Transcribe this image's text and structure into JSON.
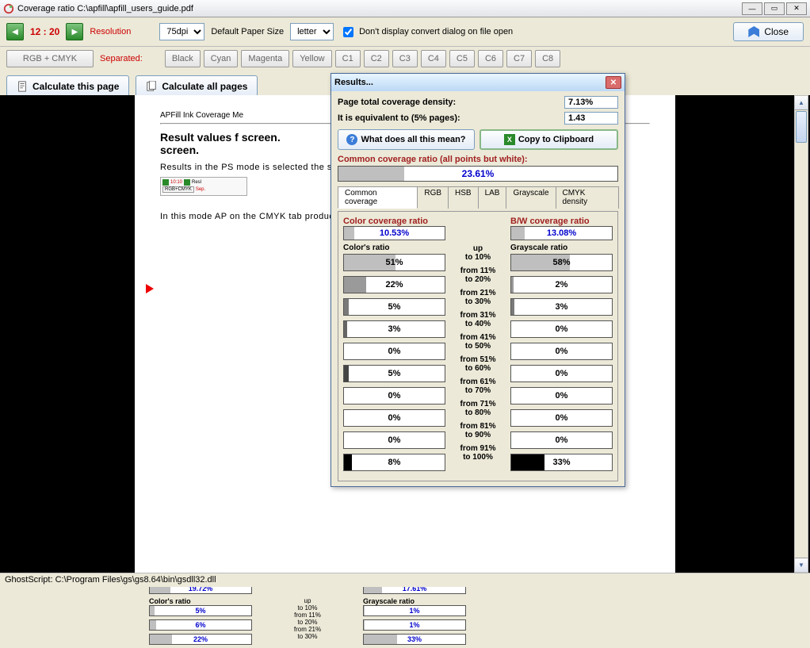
{
  "window": {
    "title": "Coverage ratio C:\\apfill\\apfill_users_guide.pdf",
    "min": "—",
    "max": "▭",
    "close": "✕"
  },
  "toolbar": {
    "page_counter": "12 : 20",
    "resolution_label": "Resolution",
    "dpi_value": "75dpi",
    "paper_label": "Default Paper Size",
    "paper_value": "letter",
    "checkbox_label": "Don't display convert dialog on file open",
    "close_label": "Close"
  },
  "toolbar2": {
    "color_mode": "RGB + CMYK",
    "separated_label": "Separated:",
    "channels": [
      "Black",
      "Cyan",
      "Magenta",
      "Yellow",
      "C1",
      "C2",
      "C3",
      "C4",
      "C5",
      "C6",
      "C7",
      "C8"
    ]
  },
  "calc": {
    "this_page": "Calculate this page",
    "all_pages": "Calculate all pages"
  },
  "doc": {
    "header": "APFill Ink Coverage Me",
    "heading": "Result values f                               screen.",
    "para1": "Results in the PS                 mode is selected                  the screen is mea",
    "para2": "In this mode AP                on the CMYK tab                 produces the foll"
  },
  "dialog": {
    "title": "Results...",
    "row1_label": "Page total coverage density:",
    "row1_value": "7.13%",
    "row2_label": "It is equivalent to (5% pages):",
    "row2_value": "1.43",
    "help_btn": "What does all this mean?",
    "copy_btn": "Copy to Clipboard",
    "common_header": "Common coverage ratio (all points but white):",
    "common_value": "23.61%",
    "common_fill_pct": 23.61,
    "tabs": [
      "Common coverage",
      "RGB",
      "HSB",
      "LAB",
      "Grayscale",
      "CMYK density"
    ],
    "color_ratio_label": "Color coverage ratio",
    "bw_ratio_label": "B/W coverage ratio",
    "color_ratio_value": "10.53%",
    "color_ratio_fill": 10.53,
    "bw_ratio_value": "13.08%",
    "bw_ratio_fill": 13.08,
    "colors_ratio_label": "Color's ratio",
    "grayscale_ratio_label": "Grayscale ratio",
    "ranges": [
      "up to 10%",
      "from 11% to 20%",
      "from 21% to 30%",
      "from 31% to 40%",
      "from 41% to 50%",
      "from 51% to 60%",
      "from 61% to 70%",
      "from 71% to 80%",
      "from 81% to 90%",
      "from 91% to 100%"
    ],
    "color_bars": [
      {
        "label": "51%",
        "fill": 51,
        "color": "#bfbfbf"
      },
      {
        "label": "22%",
        "fill": 22,
        "color": "#9a9a9a"
      },
      {
        "label": "5%",
        "fill": 5,
        "color": "#7a7a7a"
      },
      {
        "label": "3%",
        "fill": 3,
        "color": "#666"
      },
      {
        "label": "0%",
        "fill": 0,
        "color": "#555"
      },
      {
        "label": "5%",
        "fill": 5,
        "color": "#444"
      },
      {
        "label": "0%",
        "fill": 0,
        "color": "#333"
      },
      {
        "label": "0%",
        "fill": 0,
        "color": "#222"
      },
      {
        "label": "0%",
        "fill": 0,
        "color": "#111"
      },
      {
        "label": "8%",
        "fill": 8,
        "color": "#000"
      }
    ],
    "gray_bars": [
      {
        "label": "58%",
        "fill": 58,
        "color": "#bfbfbf"
      },
      {
        "label": "2%",
        "fill": 2,
        "color": "#9a9a9a"
      },
      {
        "label": "3%",
        "fill": 3,
        "color": "#7a7a7a"
      },
      {
        "label": "0%",
        "fill": 0,
        "color": "#666"
      },
      {
        "label": "0%",
        "fill": 0,
        "color": "#555"
      },
      {
        "label": "0%",
        "fill": 0,
        "color": "#444"
      },
      {
        "label": "0%",
        "fill": 0,
        "color": "#333"
      },
      {
        "label": "0%",
        "fill": 0,
        "color": "#222"
      },
      {
        "label": "0%",
        "fill": 0,
        "color": "#111"
      },
      {
        "label": "33%",
        "fill": 33,
        "color": "#000"
      }
    ]
  },
  "mock_under": {
    "color_label": "Color coverage ratio",
    "bw_label": "B/W coverage ratio",
    "color_val": "19.72%",
    "bw_val": "17.61%",
    "colors_ratio": "Color's ratio",
    "gray_ratio": "Grayscale ratio",
    "rows": [
      {
        "c": "5%",
        "range": "up to 10%",
        "g": "1%"
      },
      {
        "c": "6%",
        "range": "from 11% to 20%",
        "g": "1%"
      },
      {
        "c": "22%",
        "range": "from 21% to 30%",
        "g": "33%"
      }
    ]
  },
  "statusbar": {
    "text": "GhostScript: C:\\Program Files\\gs\\gs8.64\\bin\\gsdll32.dll"
  }
}
